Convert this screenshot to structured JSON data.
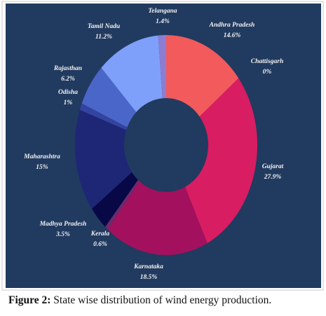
{
  "chart_data": {
    "type": "donut",
    "categories": [
      "Andhra Pradesh",
      "Chattisgarh",
      "Gujarat",
      "Karnataka",
      "Kerala",
      "Madhya Pradesh",
      "Maharashtra",
      "Odisha",
      "Rajasthan",
      "Tamil Nadu",
      "Telangana"
    ],
    "values": [
      14.6,
      0,
      27.9,
      18.5,
      0.6,
      3.5,
      15,
      1,
      6.2,
      11.2,
      1.4
    ],
    "value_labels": [
      "14.6%",
      "0%",
      "27.9%",
      "18.5%",
      "0.6%",
      "3.5%",
      "15%",
      "1%",
      "6.2%",
      "11.2%",
      "1.4%"
    ],
    "colors": [
      "#f25a5c",
      "#e0306a",
      "#d81d62",
      "#a3115e",
      "#6b2a6e",
      "#070845",
      "#1e2676",
      "#3344a0",
      "#4b66c9",
      "#7ea0fa",
      "#8d7dd2"
    ]
  },
  "caption": {
    "label": "Figure 2:",
    "text": "State wise distribution of wind energy production."
  }
}
